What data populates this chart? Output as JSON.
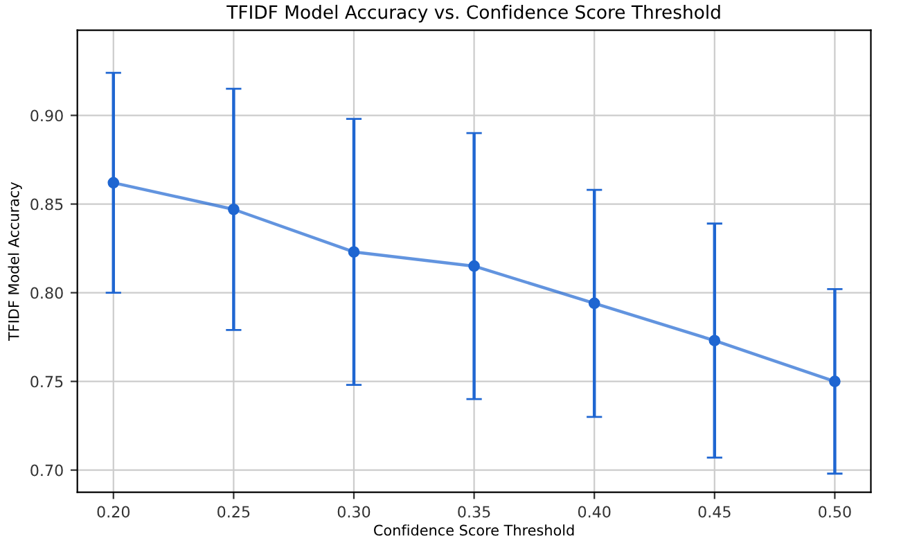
{
  "chart_data": {
    "type": "line",
    "title": "TFIDF Model Accuracy vs. Confidence Score Threshold",
    "xlabel": "Confidence Score Threshold",
    "ylabel": "TFIDF Model Accuracy",
    "x": [
      0.2,
      0.25,
      0.3,
      0.35,
      0.4,
      0.45,
      0.5
    ],
    "series": [
      {
        "color": "#1f66d1",
        "values": [
          0.862,
          0.847,
          0.823,
          0.815,
          0.794,
          0.773,
          0.75
        ],
        "errors": [
          0.062,
          0.068,
          0.075,
          0.075,
          0.064,
          0.066,
          0.052
        ]
      }
    ],
    "xlim": [
      0.185,
      0.515
    ],
    "ylim": [
      0.6875,
      0.948
    ],
    "xticks": [
      {
        "value": 0.2,
        "label": "0.20"
      },
      {
        "value": 0.25,
        "label": "0.25"
      },
      {
        "value": 0.3,
        "label": "0.30"
      },
      {
        "value": 0.35,
        "label": "0.35"
      },
      {
        "value": 0.4,
        "label": "0.40"
      },
      {
        "value": 0.45,
        "label": "0.45"
      },
      {
        "value": 0.5,
        "label": "0.50"
      }
    ],
    "yticks": [
      {
        "value": 0.7,
        "label": "0.70"
      },
      {
        "value": 0.75,
        "label": "0.75"
      },
      {
        "value": 0.8,
        "label": "0.80"
      },
      {
        "value": 0.85,
        "label": "0.85"
      },
      {
        "value": 0.9,
        "label": "0.90"
      }
    ],
    "grid": true,
    "marker": "circle",
    "line_style": "solid"
  }
}
